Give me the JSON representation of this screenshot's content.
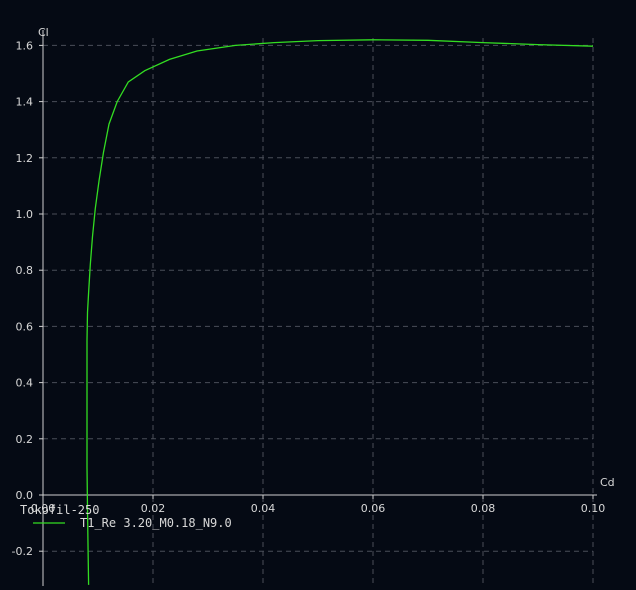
{
  "chart_data": {
    "type": "line",
    "xlabel": "Cd",
    "ylabel": "Cl",
    "xlim": [
      0.0,
      0.1
    ],
    "ylim": [
      -0.3,
      1.65
    ],
    "x_ticks": [
      0.0,
      0.02,
      0.04,
      0.06,
      0.08,
      0.1
    ],
    "x_tick_labels": [
      "0.00",
      "0.02",
      "0.04",
      "0.06",
      "0.08",
      "0.10"
    ],
    "y_ticks": [
      -0.2,
      0.0,
      0.2,
      0.4,
      0.6,
      0.8,
      1.0,
      1.2,
      1.4,
      1.6
    ],
    "y_tick_labels": [
      "-0.2",
      "0.0",
      "0.2",
      "0.4",
      "0.6",
      "0.8",
      "1.0",
      "1.2",
      "1.4",
      "1.6"
    ],
    "grid": true,
    "legend": {
      "title": "Tokofil-250",
      "placement": "bottom-left",
      "entries": [
        "T1_Re 3.20_M0.18_N9.0"
      ]
    },
    "series": [
      {
        "name": "T1_Re 3.20_M0.18_N9.0",
        "color": "#33dd22",
        "x": [
          0.0083,
          0.0082,
          0.0081,
          0.008,
          0.008,
          0.008,
          0.008,
          0.0081,
          0.0083,
          0.0086,
          0.009,
          0.0095,
          0.0102,
          0.011,
          0.012,
          0.0135,
          0.0155,
          0.0185,
          0.023,
          0.028,
          0.035,
          0.042,
          0.05,
          0.06,
          0.07,
          0.08,
          0.09,
          0.1
        ],
        "y": [
          -0.32,
          -0.2,
          -0.05,
          0.1,
          0.25,
          0.4,
          0.55,
          0.65,
          0.72,
          0.82,
          0.92,
          1.02,
          1.12,
          1.22,
          1.32,
          1.4,
          1.47,
          1.51,
          1.55,
          1.58,
          1.6,
          1.61,
          1.617,
          1.62,
          1.618,
          1.61,
          1.603,
          1.597
        ]
      }
    ]
  }
}
